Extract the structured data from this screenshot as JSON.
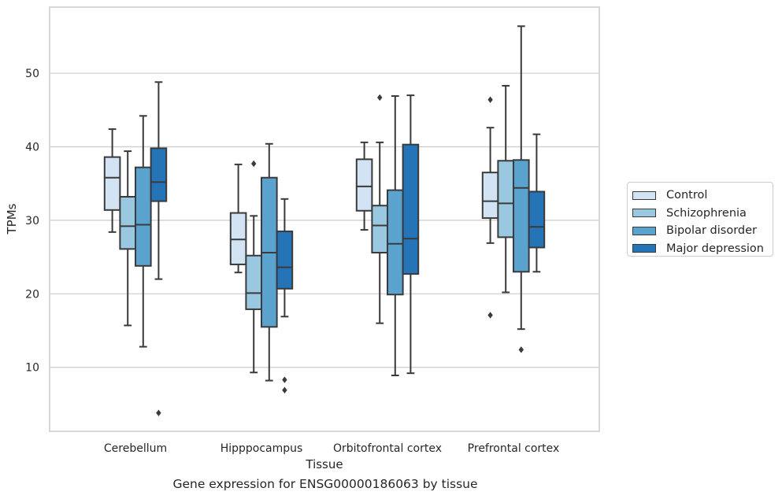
{
  "caption": "Gene expression for ENSG00000186063 by tissue",
  "chart_data": {
    "type": "box",
    "title": "",
    "xlabel": "Tissue",
    "ylabel": "TPMs",
    "ylim": [
      1.3,
      59
    ],
    "yticks": [
      10,
      20,
      30,
      40,
      50
    ],
    "grid": "horizontal",
    "legend_position": "right",
    "categories": [
      "Cerebellum",
      "Hipppocampus",
      "Orbitofrontal cortex",
      "Prefrontal cortex"
    ],
    "series": [
      {
        "name": "Control",
        "color": "#d2e3f3",
        "boxes": [
          {
            "whislo": 28.4,
            "q1": 31.4,
            "med": 35.8,
            "q3": 38.6,
            "whishi": 42.4,
            "fliers": []
          },
          {
            "whislo": 22.9,
            "q1": 24.0,
            "med": 27.4,
            "q3": 31.0,
            "whishi": 37.6,
            "fliers": []
          },
          {
            "whislo": 28.7,
            "q1": 31.3,
            "med": 34.6,
            "q3": 38.3,
            "whishi": 40.6,
            "fliers": []
          },
          {
            "whislo": 26.9,
            "q1": 30.3,
            "med": 32.6,
            "q3": 36.5,
            "whishi": 42.6,
            "fliers": [
              17.1,
              46.4
            ]
          }
        ]
      },
      {
        "name": "Schizophrenia",
        "color": "#9ac8e0",
        "boxes": [
          {
            "whislo": 15.7,
            "q1": 26.1,
            "med": 29.2,
            "q3": 33.2,
            "whishi": 39.4,
            "fliers": []
          },
          {
            "whislo": 9.3,
            "q1": 17.9,
            "med": 20.1,
            "q3": 25.2,
            "whishi": 30.6,
            "fliers": [
              37.7
            ]
          },
          {
            "whislo": 16.0,
            "q1": 25.6,
            "med": 29.3,
            "q3": 32.0,
            "whishi": 40.6,
            "fliers": [
              46.7
            ]
          },
          {
            "whislo": 20.2,
            "q1": 27.7,
            "med": 32.3,
            "q3": 38.1,
            "whishi": 48.3,
            "fliers": []
          }
        ]
      },
      {
        "name": "Bipolar disorder",
        "color": "#5ba3cf",
        "boxes": [
          {
            "whislo": 12.8,
            "q1": 23.8,
            "med": 29.4,
            "q3": 37.2,
            "whishi": 44.2,
            "fliers": []
          },
          {
            "whislo": 8.2,
            "q1": 15.5,
            "med": 25.6,
            "q3": 35.8,
            "whishi": 40.4,
            "fliers": []
          },
          {
            "whislo": 8.9,
            "q1": 19.9,
            "med": 26.8,
            "q3": 34.1,
            "whishi": 46.9,
            "fliers": []
          },
          {
            "whislo": 15.2,
            "q1": 23.0,
            "med": 34.4,
            "q3": 38.2,
            "whishi": 56.4,
            "fliers": [
              12.4
            ]
          }
        ]
      },
      {
        "name": "Major depression",
        "color": "#2474b7",
        "boxes": [
          {
            "whislo": 22.0,
            "q1": 32.6,
            "med": 35.2,
            "q3": 39.8,
            "whishi": 48.8,
            "fliers": [
              3.8
            ]
          },
          {
            "whislo": 16.9,
            "q1": 20.7,
            "med": 23.6,
            "q3": 28.5,
            "whishi": 32.9,
            "fliers": [
              6.9,
              8.3
            ]
          },
          {
            "whislo": 9.2,
            "q1": 22.7,
            "med": 27.5,
            "q3": 40.3,
            "whishi": 47.0,
            "fliers": []
          },
          {
            "whislo": 23.0,
            "q1": 26.3,
            "med": 29.1,
            "q3": 33.9,
            "whishi": 41.7,
            "fliers": []
          }
        ]
      }
    ]
  }
}
